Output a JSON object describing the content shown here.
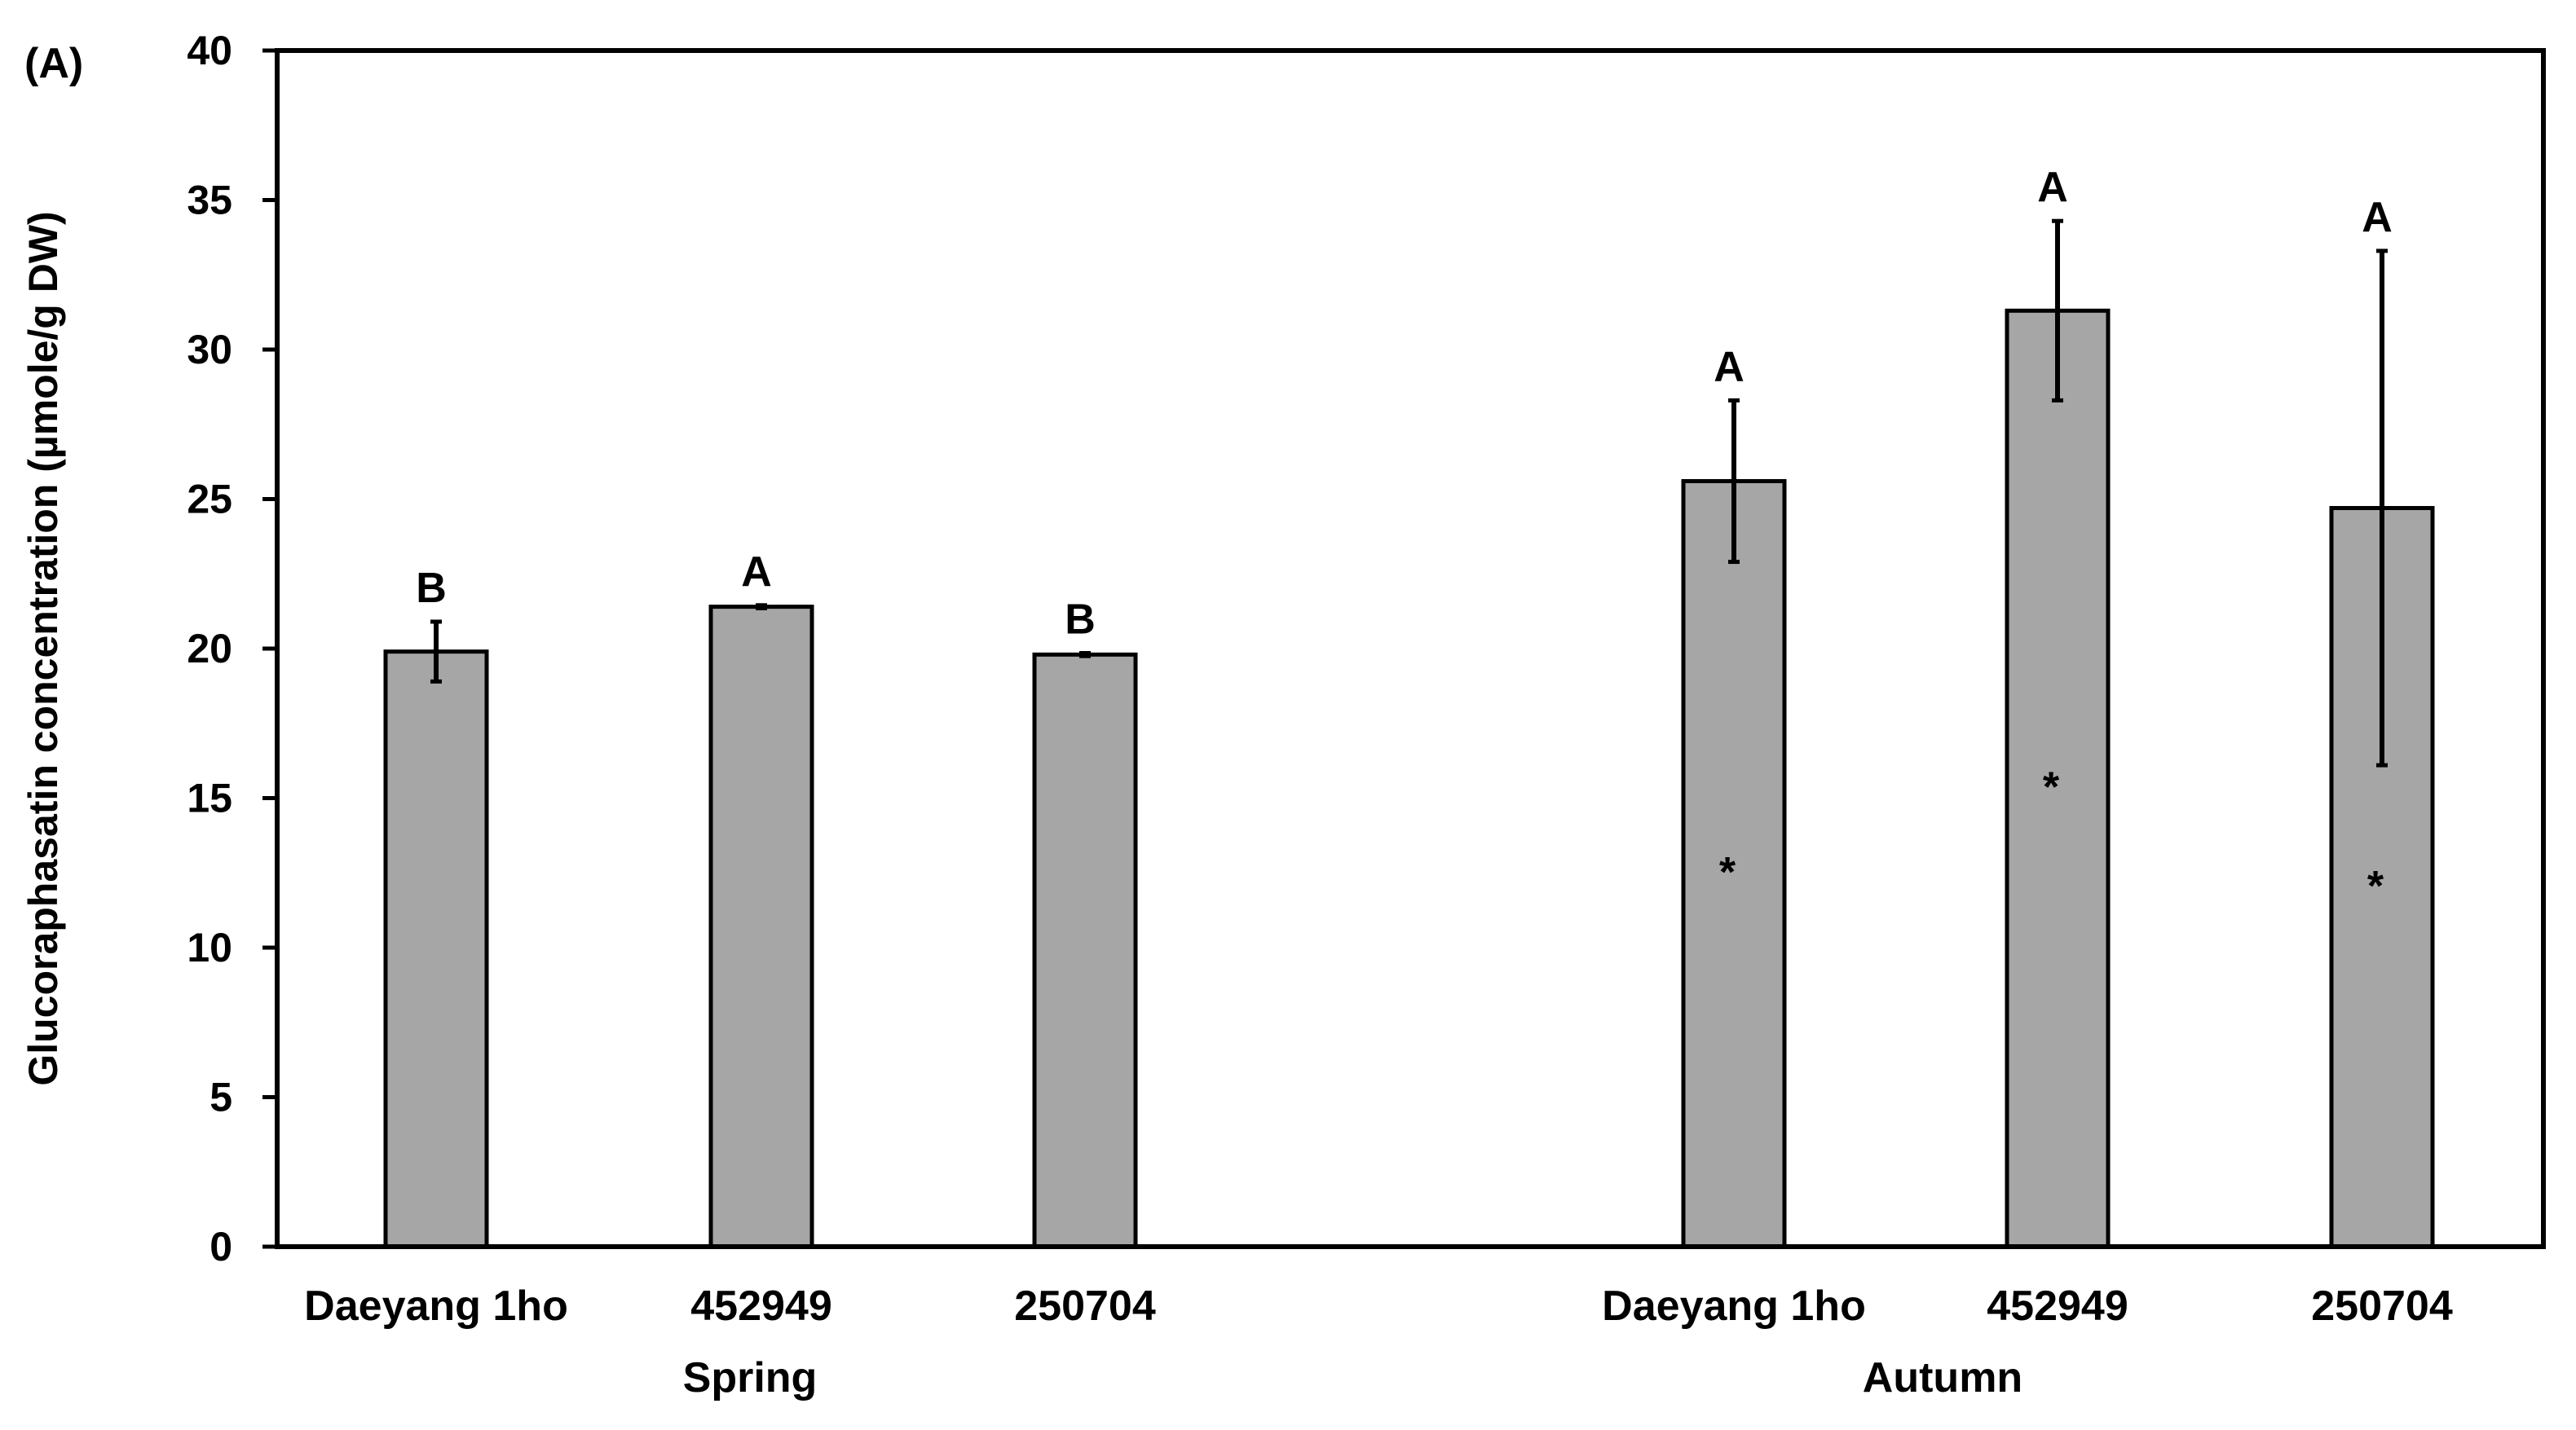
{
  "panel_label": "(A)",
  "chart_data": {
    "type": "bar",
    "ylabel": "Glucoraphasatin concentration  (µmole/g DW)",
    "ylim": [
      0,
      40
    ],
    "yticks": [
      0,
      5,
      10,
      15,
      20,
      25,
      30,
      35,
      40
    ],
    "grid": false,
    "legend": "none",
    "bar_color": "#a6a6a6",
    "groups": [
      {
        "name": "Spring",
        "categories": [
          "Daeyang 1ho",
          "452949",
          "250704"
        ],
        "values": [
          19.9,
          21.4,
          19.8
        ],
        "errors": [
          1.0,
          0.05,
          0.05
        ],
        "letters": [
          "B",
          "A",
          "B"
        ],
        "markers": [
          "",
          "",
          ""
        ]
      },
      {
        "name": "Autumn",
        "categories": [
          "Daeyang 1ho",
          "452949",
          "250704"
        ],
        "values": [
          25.6,
          31.3,
          24.7
        ],
        "errors": [
          2.7,
          3.0,
          8.6
        ],
        "letters": [
          "A",
          "A",
          "A"
        ],
        "markers": [
          "*",
          "*",
          "*"
        ]
      }
    ]
  }
}
